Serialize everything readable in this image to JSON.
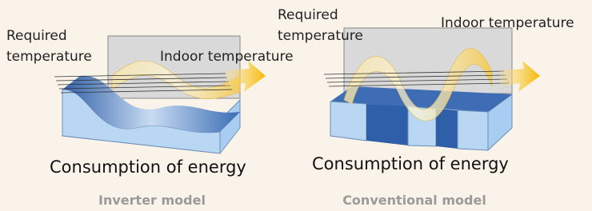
{
  "panels": [
    {
      "required_label": [
        "Required",
        "temperature"
      ],
      "indoor_label": "Indoor temperature",
      "energy_label": "Consumption of energy",
      "caption": "Inverter model"
    },
    {
      "required_label": [
        "Required",
        "temperature"
      ],
      "indoor_label": "Indoor temperature",
      "energy_label": "Consumption of energy",
      "caption": "Conventional model"
    }
  ]
}
